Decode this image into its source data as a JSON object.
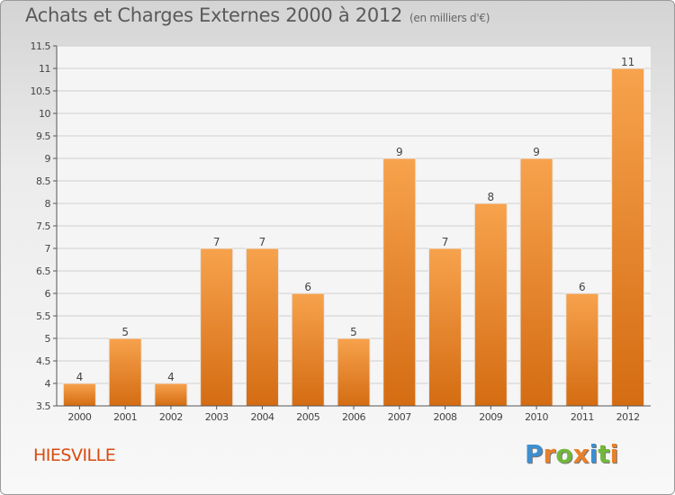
{
  "header": {
    "title": "Achats et Charges Externes 2000 à 2012",
    "unit": "(en milliers d'€)"
  },
  "footer": {
    "town": "HIESVILLE",
    "logo_text": "Proxiti"
  },
  "colors": {
    "bar_light": "#f7a24d",
    "bar_dark": "#d46c12",
    "town": "#d84b10",
    "logo": [
      "#3d8fd0",
      "#e8802a",
      "#72b73c",
      "#e8802a",
      "#3d8fd0",
      "#72b73c",
      "#e8802a"
    ]
  },
  "chart_data": {
    "type": "bar",
    "categories": [
      "2000",
      "2001",
      "2002",
      "2003",
      "2004",
      "2005",
      "2006",
      "2007",
      "2008",
      "2009",
      "2010",
      "2011",
      "2012"
    ],
    "values": [
      4,
      5,
      4,
      7,
      7,
      6,
      5,
      9,
      7,
      8,
      9,
      6,
      11
    ],
    "data_labels": [
      "4",
      "5",
      "4",
      "7",
      "7",
      "6",
      "5",
      "9",
      "7",
      "8",
      "9",
      "6",
      "11"
    ],
    "yticks": [
      "3.5",
      "4",
      "4.5",
      "5",
      "5.5",
      "6",
      "6.5",
      "7",
      "7.5",
      "8",
      "8.5",
      "9",
      "9.5",
      "10",
      "10.5",
      "11",
      "11.5"
    ],
    "ylim": [
      3.5,
      11.5
    ],
    "grid": true,
    "title": "Achats et Charges Externes 2000 à 2012",
    "xlabel": "",
    "ylabel": ""
  }
}
